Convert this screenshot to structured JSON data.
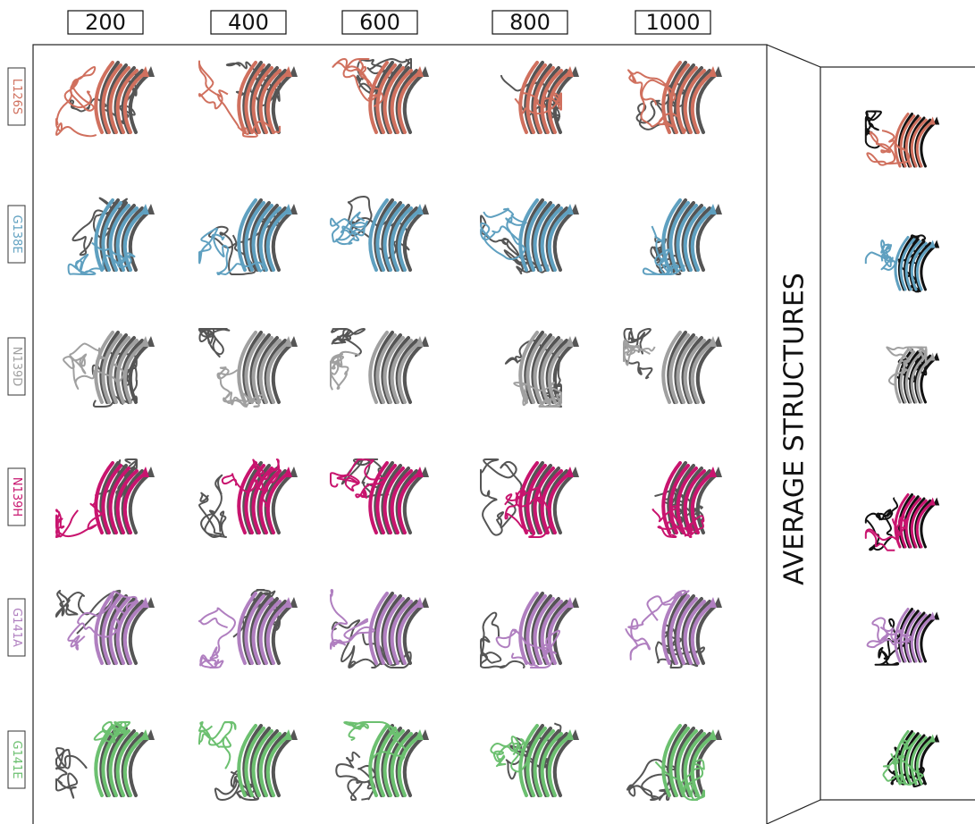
{
  "columns": [
    "200",
    "400",
    "600",
    "800",
    "1000"
  ],
  "rows": [
    {
      "label": "L126S",
      "color": "#d0705e"
    },
    {
      "label": "G138E",
      "color": "#5fa0c0"
    },
    {
      "label": "N139D",
      "color": "#a0a0a0"
    },
    {
      "label": "N139H",
      "color": "#c8146e"
    },
    {
      "label": "G141A",
      "color": "#b07fc0"
    },
    {
      "label": "G141E",
      "color": "#6cc070"
    }
  ],
  "side_label": "AVERAGE STRUCTURES"
}
